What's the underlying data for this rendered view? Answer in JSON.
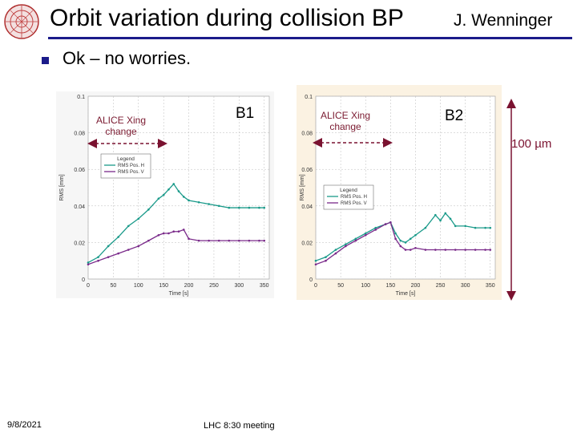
{
  "header": {
    "title": "Orbit variation during collision BP",
    "author": "J. Wenninger",
    "logo_icon": "cern-lhc-logo-icon"
  },
  "bullet": {
    "text": "Ok – no worries."
  },
  "annotations": {
    "b1_label": "B1",
    "b2_label": "B2",
    "xing_line1": "ALICE Xing",
    "xing_line2": "change",
    "scale_label": "100 µm"
  },
  "footer": {
    "date": "9/8/2021",
    "meeting": "LHC 8:30 meeting"
  },
  "colors": {
    "title_rule": "#1b1b8a",
    "annotation": "#7a1230",
    "series_h": "#1a9a8a",
    "series_v": "#7a2a8a"
  },
  "chart_data": [
    {
      "type": "line",
      "beam": "B1",
      "xlabel": "Time [s]",
      "ylabel": "RMS [mm]",
      "xlim": [
        0,
        360
      ],
      "ylim": [
        0,
        0.1
      ],
      "xticks": [
        0,
        50,
        100,
        150,
        200,
        250,
        300,
        350
      ],
      "yticks": [
        0,
        0.02,
        0.04,
        0.06,
        0.08,
        0.1
      ],
      "ytick_labels": [
        "0",
        "0.02",
        "0.04",
        "0.06",
        "0.08",
        "0.1"
      ],
      "legend_title": "Legend",
      "legend_position": "upper-left",
      "series": [
        {
          "name": "RMS Pos. H",
          "x": [
            0,
            20,
            40,
            60,
            80,
            100,
            120,
            140,
            150,
            160,
            170,
            180,
            190,
            200,
            220,
            240,
            260,
            280,
            300,
            320,
            340,
            350
          ],
          "values": [
            0.009,
            0.012,
            0.018,
            0.023,
            0.029,
            0.033,
            0.038,
            0.044,
            0.046,
            0.049,
            0.052,
            0.048,
            0.045,
            0.043,
            0.042,
            0.041,
            0.04,
            0.039,
            0.039,
            0.039,
            0.039,
            0.039
          ]
        },
        {
          "name": "RMS Pos. V",
          "x": [
            0,
            20,
            40,
            60,
            80,
            100,
            120,
            140,
            150,
            160,
            170,
            180,
            190,
            200,
            220,
            240,
            260,
            280,
            300,
            320,
            340,
            350
          ],
          "values": [
            0.008,
            0.01,
            0.012,
            0.014,
            0.016,
            0.018,
            0.021,
            0.024,
            0.025,
            0.025,
            0.026,
            0.026,
            0.027,
            0.022,
            0.021,
            0.021,
            0.021,
            0.021,
            0.021,
            0.021,
            0.021,
            0.021
          ]
        }
      ]
    },
    {
      "type": "line",
      "beam": "B2",
      "xlabel": "Time [s]",
      "ylabel": "RMS [mm]",
      "xlim": [
        0,
        360
      ],
      "ylim": [
        0,
        0.1
      ],
      "xticks": [
        0,
        50,
        100,
        150,
        200,
        250,
        300,
        350
      ],
      "yticks": [
        0,
        0.02,
        0.04,
        0.06,
        0.08,
        0.1
      ],
      "ytick_labels": [
        "0",
        "0.02",
        "0.04",
        "0.06",
        "0.08",
        "0.1"
      ],
      "legend_title": "Legend",
      "legend_position": "center",
      "series": [
        {
          "name": "RMS Pos. H",
          "x": [
            0,
            20,
            40,
            60,
            80,
            100,
            120,
            140,
            150,
            160,
            170,
            180,
            190,
            200,
            220,
            240,
            250,
            260,
            270,
            280,
            300,
            320,
            340,
            350
          ],
          "values": [
            0.01,
            0.012,
            0.016,
            0.019,
            0.022,
            0.025,
            0.028,
            0.03,
            0.031,
            0.025,
            0.021,
            0.02,
            0.022,
            0.024,
            0.028,
            0.035,
            0.032,
            0.036,
            0.033,
            0.029,
            0.029,
            0.028,
            0.028,
            0.028
          ]
        },
        {
          "name": "RMS Pos. V",
          "x": [
            0,
            20,
            40,
            60,
            80,
            100,
            120,
            140,
            150,
            160,
            170,
            180,
            190,
            200,
            220,
            240,
            260,
            280,
            300,
            320,
            340,
            350
          ],
          "values": [
            0.008,
            0.01,
            0.014,
            0.018,
            0.021,
            0.024,
            0.027,
            0.03,
            0.031,
            0.022,
            0.018,
            0.016,
            0.016,
            0.017,
            0.016,
            0.016,
            0.016,
            0.016,
            0.016,
            0.016,
            0.016,
            0.016
          ]
        }
      ]
    }
  ]
}
